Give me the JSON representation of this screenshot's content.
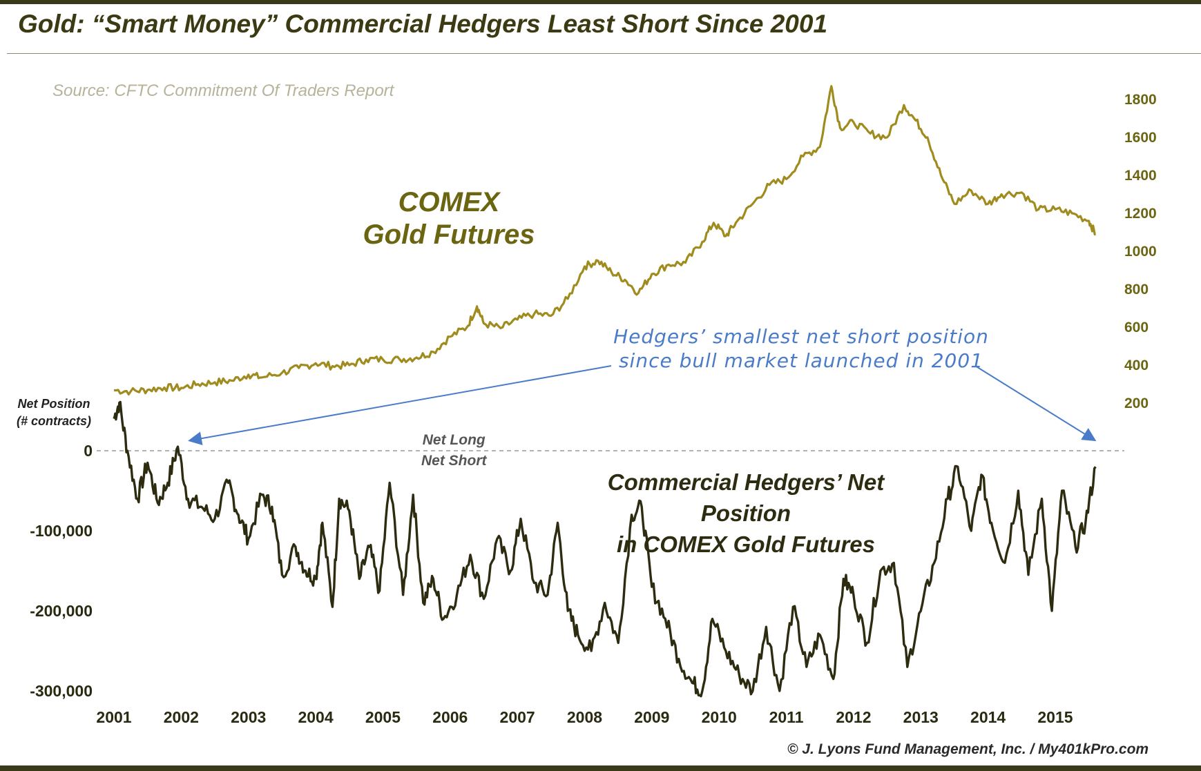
{
  "header": {
    "title": "Gold: “Smart Money” Commercial Hedgers Least Short Since 2001"
  },
  "source_note": "Source: CFTC Commitment Of Traders Report",
  "footer": {
    "copyright": "© J. Lyons Fund Management, Inc. / My401kPro.com"
  },
  "labels": {
    "gold_line1": "COMEX",
    "gold_line2": "Gold Futures",
    "hedgers_line1": "Commercial Hedgers’ Net Position",
    "hedgers_line2": "in COMEX Gold Futures",
    "annotation_line1": "Hedgers’ smallest net short position",
    "annotation_line2": "since bull market launched in 2001",
    "net_position_line1": "Net Position",
    "net_position_line2": "(# contracts)",
    "net_long": "Net Long",
    "net_short": "Net Short"
  },
  "colors": {
    "gold_line": "#a08c1e",
    "hedgers_line": "#2e2c10",
    "annotation": "#4a7bc8",
    "title": "#3b3a12",
    "zero_line": "#999999"
  },
  "chart_data": {
    "type": "line",
    "title": "Gold: “Smart Money” Commercial Hedgers Least Short Since 2001",
    "x_ticks": [
      "2001",
      "2002",
      "2003",
      "2004",
      "2005",
      "2006",
      "2007",
      "2008",
      "2009",
      "2010",
      "2011",
      "2012",
      "2013",
      "2014",
      "2015"
    ],
    "xlim": [
      2001.0,
      2015.75
    ],
    "series": [
      {
        "name": "COMEX Gold Futures",
        "axis": "right",
        "ylim": [
          0,
          2000
        ],
        "y_ticks": [
          200,
          400,
          600,
          800,
          1000,
          1200,
          1400,
          1600,
          1800
        ],
        "x": [
          2001.0,
          2001.25,
          2001.5,
          2001.75,
          2002.0,
          2002.25,
          2002.5,
          2002.75,
          2003.0,
          2003.2,
          2003.5,
          2003.75,
          2004.0,
          2004.25,
          2004.5,
          2004.75,
          2005.0,
          2005.25,
          2005.5,
          2005.75,
          2006.0,
          2006.25,
          2006.4,
          2006.5,
          2006.75,
          2007.0,
          2007.25,
          2007.5,
          2007.75,
          2008.0,
          2008.2,
          2008.4,
          2008.6,
          2008.8,
          2009.0,
          2009.25,
          2009.5,
          2009.75,
          2009.92,
          2010.1,
          2010.25,
          2010.5,
          2010.75,
          2011.0,
          2011.25,
          2011.5,
          2011.67,
          2011.8,
          2012.0,
          2012.25,
          2012.5,
          2012.75,
          2012.9,
          2013.1,
          2013.3,
          2013.5,
          2013.75,
          2014.0,
          2014.2,
          2014.5,
          2014.75,
          2015.0,
          2015.25,
          2015.5,
          2015.6
        ],
        "values": [
          268,
          262,
          270,
          282,
          280,
          300,
          310,
          318,
          350,
          335,
          360,
          385,
          410,
          395,
          400,
          430,
          430,
          430,
          440,
          470,
          550,
          600,
          710,
          620,
          595,
          640,
          670,
          660,
          750,
          920,
          950,
          890,
          850,
          780,
          880,
          930,
          940,
          1050,
          1150,
          1080,
          1150,
          1250,
          1350,
          1380,
          1500,
          1550,
          1870,
          1650,
          1680,
          1620,
          1600,
          1770,
          1700,
          1600,
          1400,
          1250,
          1320,
          1250,
          1300,
          1310,
          1220,
          1220,
          1200,
          1160,
          1090
        ]
      },
      {
        "name": "Commercial Hedgers’ Net Position in COMEX Gold Futures",
        "axis": "left",
        "ylabel": "Net Position (# contracts)",
        "ylim": [
          -300000,
          0
        ],
        "y_ticks": [
          0,
          -100000,
          -200000,
          -300000
        ],
        "y_tick_labels": [
          "0",
          "-100,000",
          "-200,000",
          "-300,000"
        ],
        "x": [
          2001.0,
          2001.08,
          2001.2,
          2001.35,
          2001.5,
          2001.65,
          2001.8,
          2001.95,
          2002.1,
          2002.3,
          2002.5,
          2002.7,
          2002.85,
          2003.0,
          2003.2,
          2003.35,
          2003.5,
          2003.7,
          2003.85,
          2004.0,
          2004.1,
          2004.25,
          2004.35,
          2004.5,
          2004.65,
          2004.8,
          2004.95,
          2005.1,
          2005.3,
          2005.45,
          2005.6,
          2005.75,
          2005.9,
          2006.1,
          2006.3,
          2006.5,
          2006.7,
          2006.9,
          2007.05,
          2007.25,
          2007.45,
          2007.6,
          2007.75,
          2007.9,
          2008.1,
          2008.3,
          2008.5,
          2008.7,
          2008.85,
          2009.0,
          2009.2,
          2009.4,
          2009.6,
          2009.75,
          2009.9,
          2010.1,
          2010.3,
          2010.5,
          2010.7,
          2010.9,
          2011.1,
          2011.3,
          2011.5,
          2011.7,
          2011.85,
          2012.0,
          2012.2,
          2012.4,
          2012.6,
          2012.8,
          2013.0,
          2013.2,
          2013.4,
          2013.55,
          2013.75,
          2013.9,
          2014.05,
          2014.25,
          2014.45,
          2014.6,
          2014.8,
          2014.95,
          2015.1,
          2015.3,
          2015.45,
          2015.6
        ],
        "values": [
          40000,
          60000,
          0,
          -60000,
          -15000,
          -65000,
          -40000,
          5000,
          -60000,
          -70000,
          -85000,
          -40000,
          -80000,
          -110000,
          -55000,
          -70000,
          -155000,
          -120000,
          -150000,
          -160000,
          -90000,
          -195000,
          -60000,
          -75000,
          -160000,
          -120000,
          -175000,
          -40000,
          -180000,
          -55000,
          -190000,
          -160000,
          -210000,
          -180000,
          -130000,
          -185000,
          -110000,
          -150000,
          -85000,
          -165000,
          -180000,
          -90000,
          -200000,
          -230000,
          -250000,
          -190000,
          -240000,
          -80000,
          -70000,
          -170000,
          -210000,
          -260000,
          -290000,
          -300000,
          -210000,
          -250000,
          -280000,
          -300000,
          -220000,
          -300000,
          -195000,
          -270000,
          -230000,
          -285000,
          -160000,
          -180000,
          -240000,
          -150000,
          -140000,
          -270000,
          -200000,
          -140000,
          -60000,
          -20000,
          -100000,
          -30000,
          -90000,
          -140000,
          -50000,
          -155000,
          -60000,
          -200000,
          -50000,
          -120000,
          -90000,
          -20000
        ]
      }
    ],
    "zero_line": {
      "value": 0,
      "label_above": "Net Long",
      "label_below": "Net Short",
      "style": "dashed"
    },
    "grid": false,
    "legend": "none (inline text labels)"
  }
}
